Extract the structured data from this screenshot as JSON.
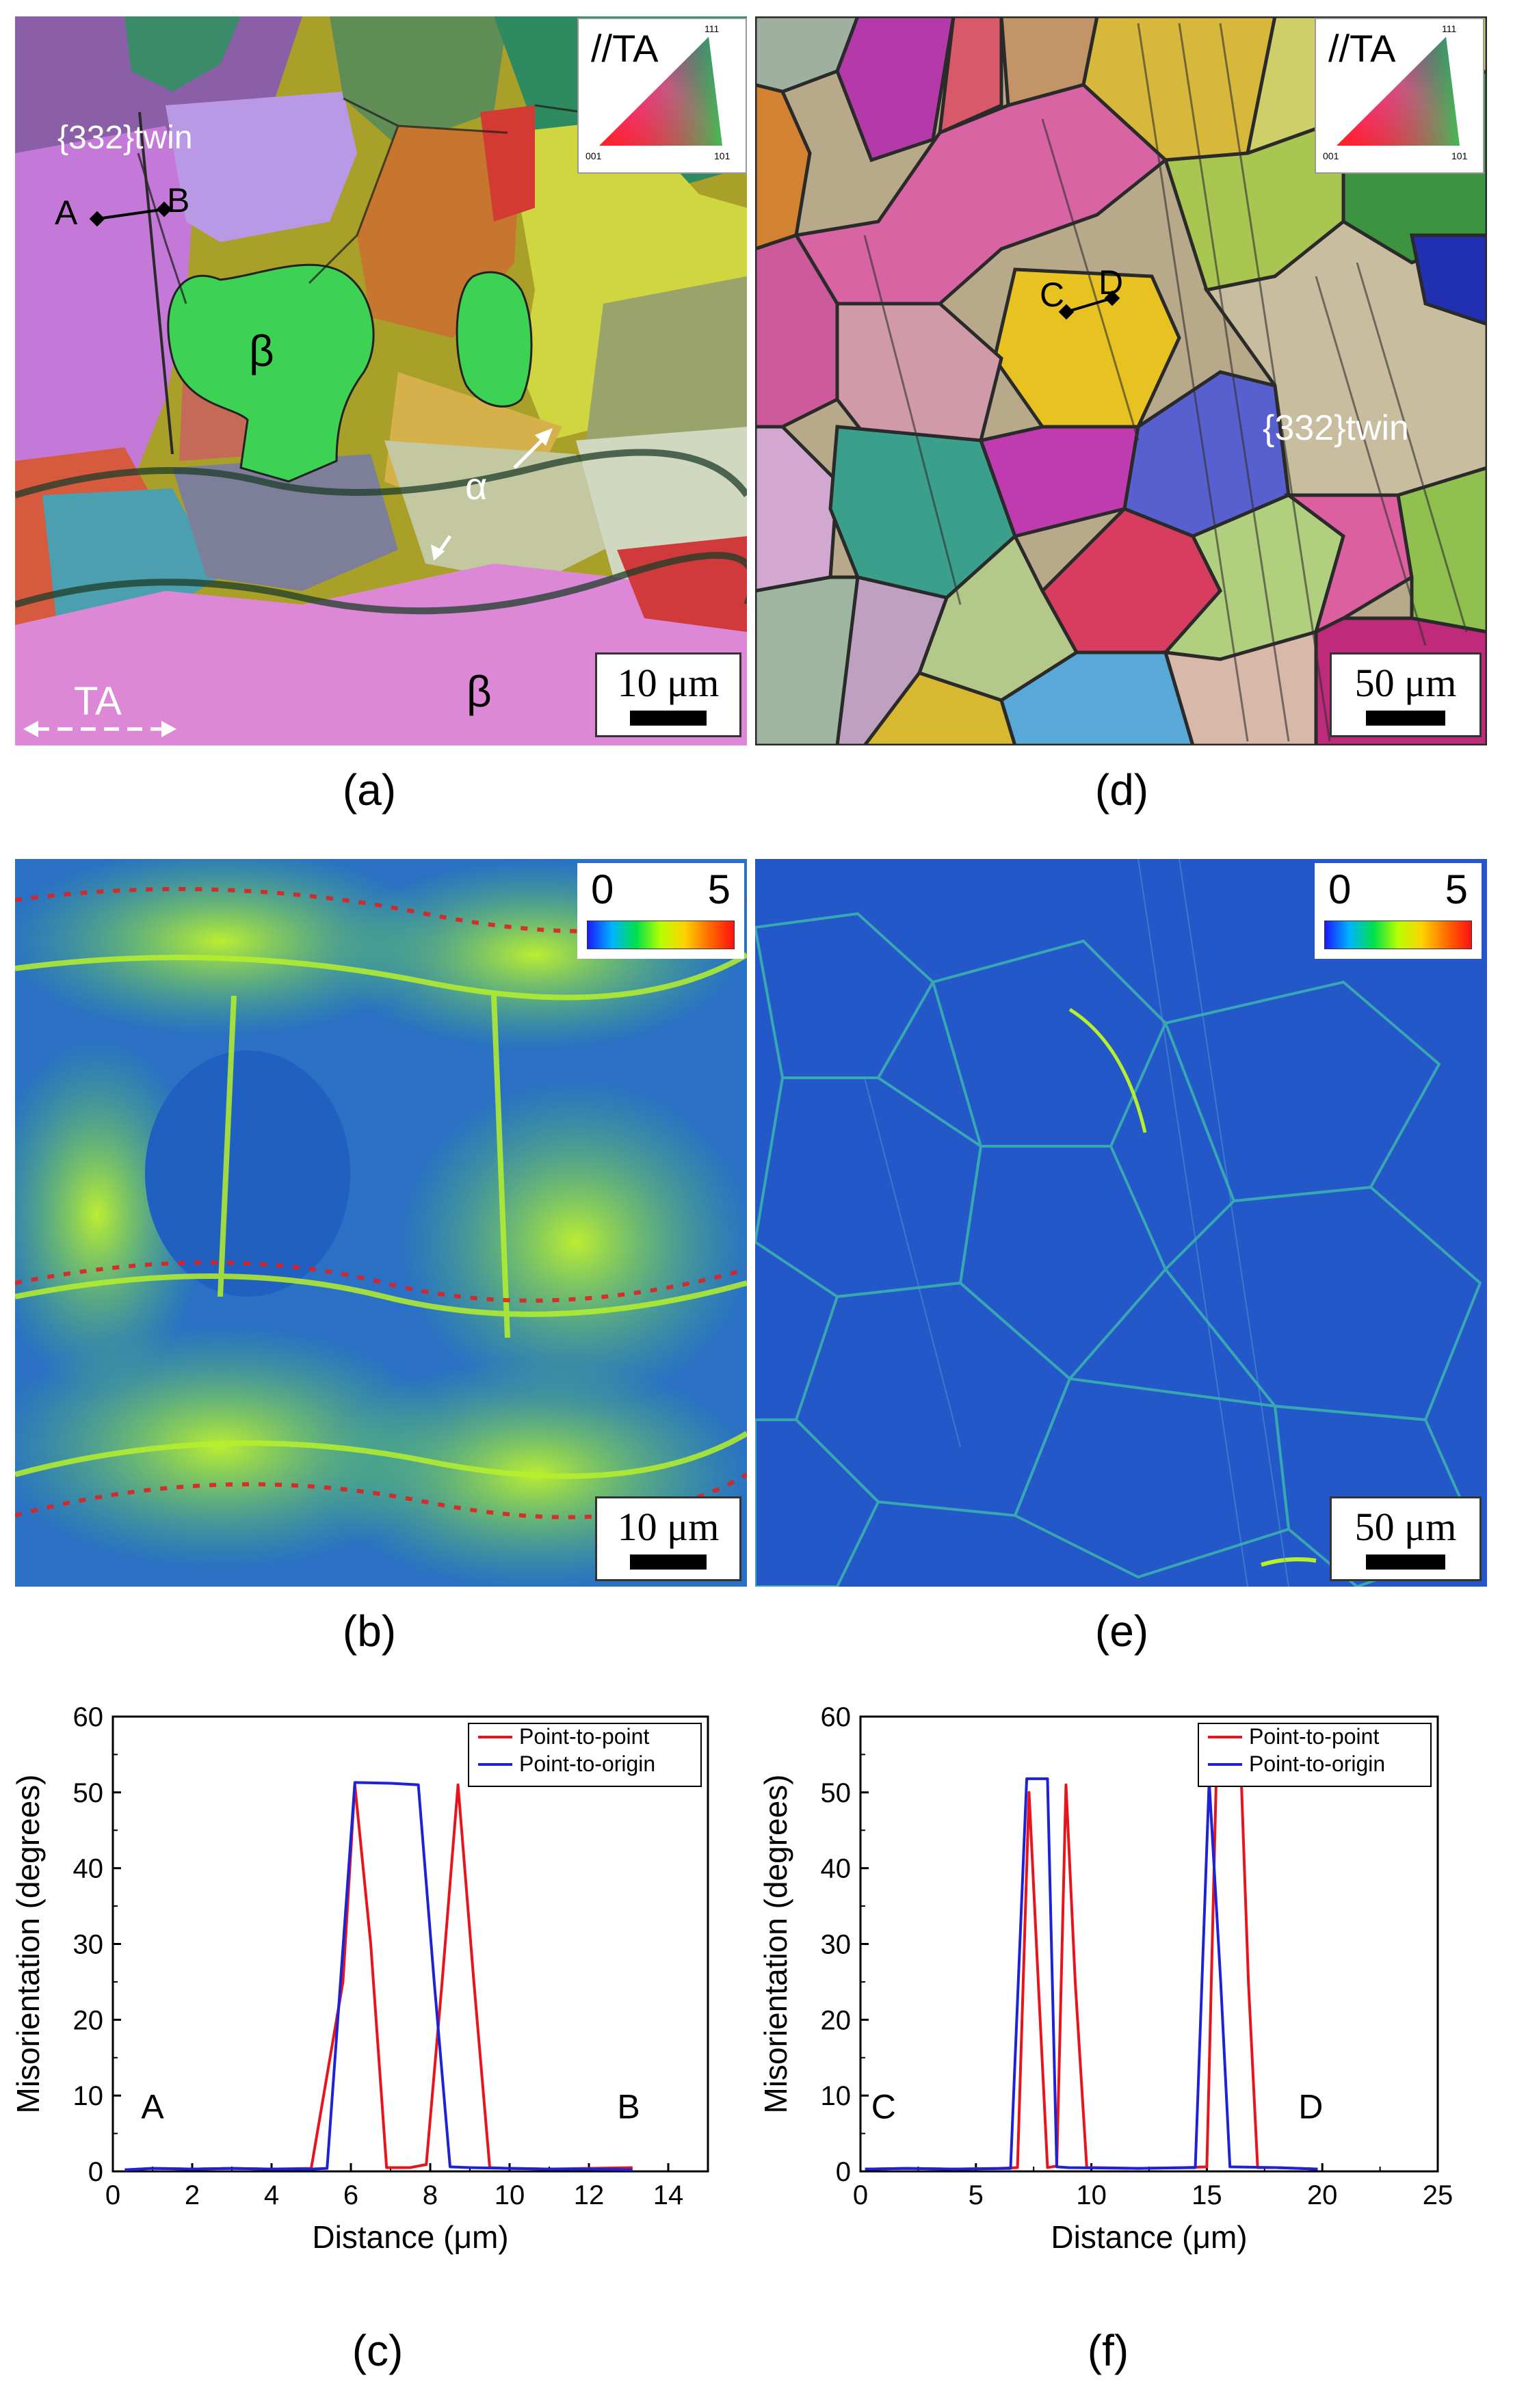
{
  "panels": {
    "a": {
      "caption": "(a)",
      "ipf_title": "//TA",
      "ipf_corners": [
        "001",
        "101",
        "111"
      ],
      "labels": {
        "twin": "{332}twin",
        "A": "A",
        "B": "B",
        "beta1": "β",
        "beta2": "β",
        "alpha": "α",
        "ta": "TA"
      },
      "scale": "10 μm"
    },
    "b": {
      "caption": "(b)",
      "colorbar_min": "0",
      "colorbar_max": "5",
      "scale": "10 μm"
    },
    "d": {
      "caption": "(d)",
      "ipf_title": "//TA",
      "ipf_corners": [
        "001",
        "101",
        "111"
      ],
      "labels": {
        "twin": "{332}twin",
        "C": "C",
        "D": "D"
      },
      "scale": "50 μm"
    },
    "e": {
      "caption": "(e)",
      "colorbar_min": "0",
      "colorbar_max": "5",
      "scale": "50 μm"
    },
    "c": {
      "caption": "(c)"
    },
    "f": {
      "caption": "(f)"
    }
  },
  "chart_data": [
    {
      "type": "line",
      "panel": "c",
      "xlabel": "Distance (μm)",
      "ylabel": "Misorientation (degrees)",
      "xlim": [
        0,
        15
      ],
      "ylim": [
        0,
        60
      ],
      "xticks": [
        0,
        2,
        4,
        6,
        8,
        10,
        12,
        14
      ],
      "yticks": [
        0,
        10,
        20,
        30,
        40,
        50,
        60
      ],
      "legend_position": "top-right",
      "annotations": [
        {
          "text": "A",
          "x": 1.0,
          "y": 7
        },
        {
          "text": "B",
          "x": 13.0,
          "y": 7
        }
      ],
      "series": [
        {
          "name": "Point-to-point",
          "color": "#e8141b",
          "x": [
            0.3,
            1,
            2,
            3,
            4,
            5,
            5.8,
            6.1,
            6.5,
            6.9,
            7.5,
            7.9,
            8.3,
            8.7,
            9.1,
            9.5,
            10,
            11,
            12,
            13.1
          ],
          "y": [
            0.2,
            0.4,
            0.3,
            0.4,
            0.3,
            0.4,
            25,
            51,
            30,
            0.5,
            0.5,
            0.9,
            25,
            51,
            25,
            0.5,
            0.4,
            0.3,
            0.4,
            0.5
          ]
        },
        {
          "name": "Point-to-origin",
          "color": "#1c23d6",
          "x": [
            0.3,
            1,
            2,
            3,
            4,
            5,
            5.4,
            6.1,
            7,
            7.7,
            8.1,
            8.5,
            9,
            10,
            11,
            12,
            13.1
          ],
          "y": [
            0.2,
            0.4,
            0.3,
            0.4,
            0.3,
            0.3,
            0.4,
            51.3,
            51.2,
            51,
            25,
            0.6,
            0.5,
            0.4,
            0.3,
            0.3,
            0.2
          ]
        }
      ]
    },
    {
      "type": "line",
      "panel": "f",
      "xlabel": "Distance (μm)",
      "ylabel": "Misorientation (degrees)",
      "xlim": [
        0,
        25
      ],
      "ylim": [
        0,
        60
      ],
      "xticks": [
        0,
        5,
        10,
        15,
        20,
        25
      ],
      "yticks": [
        0,
        10,
        20,
        30,
        40,
        50,
        60
      ],
      "legend_position": "top-right",
      "annotations": [
        {
          "text": "C",
          "x": 1.0,
          "y": 7
        },
        {
          "text": "D",
          "x": 19.5,
          "y": 7
        }
      ],
      "series": [
        {
          "name": "Point-to-point",
          "color": "#e8141b",
          "x": [
            0.2,
            2,
            4,
            6,
            6.8,
            7.3,
            7.7,
            8.1,
            8.5,
            8.9,
            9.3,
            9.8,
            10.2,
            12,
            14,
            15,
            15.4,
            16.5,
            16.8,
            17.2,
            18,
            19.8
          ],
          "y": [
            0.3,
            0.4,
            0.3,
            0.4,
            0.5,
            50,
            25,
            0.5,
            0.7,
            51,
            25,
            0.5,
            0.5,
            0.4,
            0.5,
            0.6,
            51,
            51,
            25,
            0.5,
            0.5,
            0.3
          ]
        },
        {
          "name": "Point-to-origin",
          "color": "#1c23d6",
          "x": [
            0.2,
            2,
            4,
            6.5,
            7.2,
            8.1,
            8.5,
            9,
            12,
            14.5,
            15.1,
            15.6,
            16,
            18,
            19.8
          ],
          "y": [
            0.3,
            0.4,
            0.3,
            0.4,
            51.8,
            51.8,
            0.6,
            0.5,
            0.4,
            0.5,
            51.5,
            25,
            0.6,
            0.5,
            0.3
          ]
        }
      ]
    }
  ]
}
